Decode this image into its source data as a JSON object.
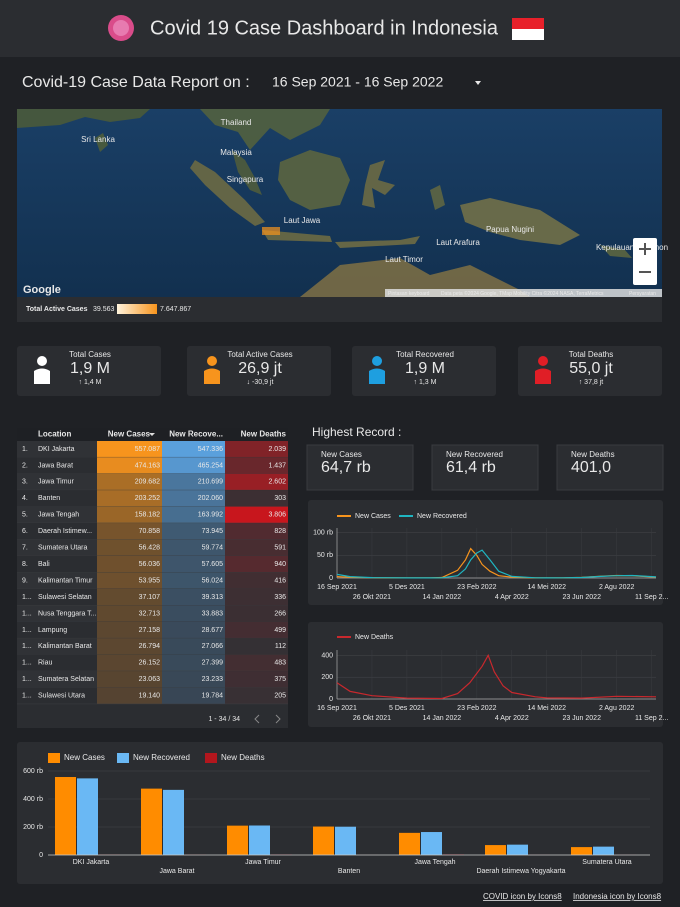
{
  "header": {
    "title": "Covid 19 Case Dashboard in Indonesia"
  },
  "report": {
    "label": "Covid-19 Case Data Report on :",
    "range": "16 Sep 2021 - 16 Sep 2022"
  },
  "map": {
    "labels": [
      "Sri Lanka",
      "Thailand",
      "Malaysia",
      "Singapura",
      "Laut Jawa",
      "Laut Arafura",
      "Laut Timor",
      "Papua Nugini",
      "Kepulauan Solomon"
    ],
    "legend": {
      "title": "Total Active Cases",
      "min": "39.563",
      "max": "7.647.867"
    },
    "logo": "Google",
    "attribution": [
      "Pintasan keyboard",
      "Data peta ©2024 Google, TMap Mobility Citra ©2024 NASA, TerraMetrics",
      "Persyaratan"
    ]
  },
  "kpis": [
    {
      "label": "Total Cases",
      "value": "1,9 M",
      "delta": "↑ 1,4 M"
    },
    {
      "label": "Total Active Cases",
      "value": "26,9 jt",
      "delta": "↓ -30,9 jt"
    },
    {
      "label": "Total Recovered",
      "value": "1,9 M",
      "delta": "↑ 1,3 M"
    },
    {
      "label": "Total Deaths",
      "value": "55,0 jt",
      "delta": "↑ 37,8 jt"
    }
  ],
  "table": {
    "columns": [
      "Location",
      "New Cases",
      "New Recove...",
      "New Deaths"
    ],
    "rows": [
      [
        "1.",
        "DKI Jakarta",
        "557.087",
        "547.336",
        "2.039"
      ],
      [
        "2.",
        "Jawa Barat",
        "474.163",
        "465.254",
        "1.437"
      ],
      [
        "3.",
        "Jawa Timur",
        "209.682",
        "210.699",
        "2.602"
      ],
      [
        "4.",
        "Banten",
        "203.252",
        "202.060",
        "303"
      ],
      [
        "5.",
        "Jawa Tengah",
        "158.182",
        "163.992",
        "3.806"
      ],
      [
        "6.",
        "Daerah Istimew...",
        "70.858",
        "73.945",
        "828"
      ],
      [
        "7.",
        "Sumatera Utara",
        "56.428",
        "59.774",
        "591"
      ],
      [
        "8.",
        "Bali",
        "56.036",
        "57.605",
        "940"
      ],
      [
        "9.",
        "Kalimantan Timur",
        "53.955",
        "56.024",
        "416"
      ],
      [
        "1...",
        "Sulawesi Selatan",
        "37.107",
        "39.313",
        "336"
      ],
      [
        "1...",
        "Nusa Tenggara T...",
        "32.713",
        "33.883",
        "266"
      ],
      [
        "1...",
        "Lampung",
        "27.158",
        "28.677",
        "499"
      ],
      [
        "1...",
        "Kalimantan Barat",
        "26.794",
        "27.066",
        "112"
      ],
      [
        "1...",
        "Riau",
        "26.152",
        "27.399",
        "483"
      ],
      [
        "1...",
        "Sumatera Selatan",
        "23.063",
        "23.233",
        "375"
      ],
      [
        "1...",
        "Sulawesi Utara",
        "19.140",
        "19.784",
        "205"
      ]
    ],
    "pagination": "1 - 34 / 34"
  },
  "highest": {
    "title": "Highest Record :",
    "cards": [
      {
        "label": "New Cases",
        "value": "64,7 rb"
      },
      {
        "label": "New Recovered",
        "value": "61,4 rb"
      },
      {
        "label": "New Deaths",
        "value": "401,0"
      }
    ]
  },
  "charts": [
    {
      "type": "line",
      "x": [
        "2021-09-16",
        "2021-10-01",
        "2021-10-26",
        "2021-12-05",
        "2022-01-01",
        "2022-01-14",
        "2022-02-01",
        "2022-02-10",
        "2022-02-16",
        "2022-02-23",
        "2022-03-01",
        "2022-03-10",
        "2022-03-20",
        "2022-04-04",
        "2022-05-01",
        "2022-05-14",
        "2022-06-01",
        "2022-06-23",
        "2022-07-15",
        "2022-08-02",
        "2022-08-20",
        "2022-09-16"
      ],
      "series": [
        {
          "name": "New Cases",
          "color": "#f7941d",
          "values": [
            3000,
            1500,
            600,
            200,
            300,
            1000,
            17000,
            40000,
            64700,
            50000,
            30000,
            15000,
            5000,
            2000,
            300,
            250,
            500,
            1500,
            4000,
            5500,
            5000,
            2000
          ]
        },
        {
          "name": "New Recovered",
          "color": "#1fb5c1",
          "values": [
            8000,
            3000,
            800,
            300,
            200,
            400,
            5000,
            20000,
            40000,
            55000,
            61400,
            40000,
            15000,
            3500,
            500,
            300,
            400,
            1200,
            3500,
            5000,
            5500,
            2500
          ]
        }
      ],
      "xlim": [
        "2021-09-16",
        "2022-09-16"
      ],
      "xticks": [
        {
          "value": "2021-09-16",
          "label": "16 Sep 2021"
        },
        {
          "value": "2021-10-26",
          "label": "26 Okt 2021"
        },
        {
          "value": "2021-12-05",
          "label": "5 Des 2021"
        },
        {
          "value": "2022-01-14",
          "label": "14 Jan 2022"
        },
        {
          "value": "2022-02-23",
          "label": "23 Feb 2022"
        },
        {
          "value": "2022-04-04",
          "label": "4 Apr 2022"
        },
        {
          "value": "2022-05-14",
          "label": "14 Mei 2022"
        },
        {
          "value": "2022-06-23",
          "label": "23 Jun 2022"
        },
        {
          "value": "2022-08-02",
          "label": "2 Agu 2022"
        },
        {
          "value": "2022-09-11",
          "label": "11 Sep 2..."
        }
      ],
      "ylim": [
        0,
        110000
      ],
      "yticks": [
        0,
        {
          "value": 50000,
          "label": "50 rb"
        },
        {
          "value": 100000,
          "label": "100 rb"
        }
      ],
      "grid": true
    },
    {
      "type": "line",
      "x": [
        "2021-09-16",
        "2021-10-01",
        "2021-10-26",
        "2021-12-05",
        "2022-01-14",
        "2022-02-01",
        "2022-02-15",
        "2022-03-01",
        "2022-03-08",
        "2022-03-15",
        "2022-03-25",
        "2022-04-04",
        "2022-05-01",
        "2022-05-14",
        "2022-06-23",
        "2022-08-02",
        "2022-09-16"
      ],
      "series": [
        {
          "name": "New Deaths",
          "color": "#c8282d",
          "values": [
            150,
            70,
            30,
            8,
            5,
            50,
            150,
            300,
            401,
            250,
            120,
            60,
            20,
            10,
            8,
            25,
            20
          ]
        }
      ],
      "xlim": [
        "2021-09-16",
        "2022-09-16"
      ],
      "xticks": [
        {
          "value": "2021-09-16",
          "label": "16 Sep 2021"
        },
        {
          "value": "2021-10-26",
          "label": "26 Okt 2021"
        },
        {
          "value": "2021-12-05",
          "label": "5 Des 2021"
        },
        {
          "value": "2022-01-14",
          "label": "14 Jan 2022"
        },
        {
          "value": "2022-02-23",
          "label": "23 Feb 2022"
        },
        {
          "value": "2022-04-04",
          "label": "4 Apr 2022"
        },
        {
          "value": "2022-05-14",
          "label": "14 Mei 2022"
        },
        {
          "value": "2022-06-23",
          "label": "23 Jun 2022"
        },
        {
          "value": "2022-08-02",
          "label": "2 Agu 2022"
        },
        {
          "value": "2022-09-11",
          "label": "11 Sep 2..."
        }
      ],
      "ylim": [
        0,
        450
      ],
      "yticks": [
        0,
        200,
        400
      ],
      "grid": true
    },
    {
      "type": "bar",
      "categories": [
        "DKI Jakarta",
        "Jawa Barat",
        "Jawa Timur",
        "Banten",
        "Jawa Tengah",
        "Daerah Istimewa Yogyakarta",
        "Sumatera Utara"
      ],
      "series": [
        {
          "name": "New Cases",
          "color": "#ff8c00",
          "values": [
            557087,
            474163,
            209682,
            203252,
            158182,
            70858,
            56428
          ]
        },
        {
          "name": "New Recovered",
          "color": "#6ab8f4",
          "values": [
            547336,
            465254,
            210699,
            202060,
            163992,
            73945,
            59774
          ]
        },
        {
          "name": "New Deaths",
          "color": "#b2161d",
          "values": [
            2039,
            1437,
            2602,
            303,
            3806,
            828,
            591
          ]
        }
      ],
      "ylim": [
        0,
        650000
      ],
      "yticks": [
        0,
        {
          "value": 200000,
          "label": "200 rb"
        },
        {
          "value": 400000,
          "label": "400 rb"
        },
        {
          "value": 600000,
          "label": "600 rb"
        }
      ],
      "grid": true
    }
  ],
  "footer": {
    "links": [
      "COVID icon by Icons8",
      "Indonesia icon by Icons8"
    ]
  }
}
